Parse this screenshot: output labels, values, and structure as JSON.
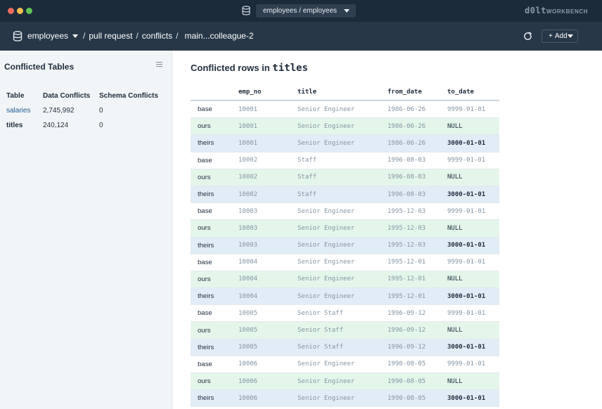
{
  "titlebar": {
    "database_select": "employees / employees",
    "brand_main": "d0lt",
    "brand_sub": "WORKBENCH"
  },
  "header": {
    "database": "employees",
    "crumb_pull_request": "pull request",
    "crumb_conflicts": "conflicts",
    "crumb_branch": "main...colleague-2",
    "add_label": "Add"
  },
  "sidebar": {
    "title": "Conflicted Tables",
    "columns": [
      "Table",
      "Data Conflicts",
      "Schema Conflicts"
    ],
    "rows": [
      {
        "table": "salaries",
        "data_conflicts": "2,745,992",
        "schema_conflicts": "0"
      },
      {
        "table": "titles",
        "data_conflicts": "240,124",
        "schema_conflicts": "0"
      }
    ]
  },
  "main": {
    "title_prefix": "Conflicted rows in",
    "table_name": "titles",
    "columns": [
      "emp_no",
      "title",
      "from_date",
      "to_date"
    ],
    "rows": [
      {
        "kind": "base",
        "emp_no": "10001",
        "title": "Senior Engineer",
        "from_date": "1986-06-26",
        "to_date": "9999-01-01"
      },
      {
        "kind": "ours",
        "emp_no": "10001",
        "title": "Senior Engineer",
        "from_date": "1986-06-26",
        "to_date": "NULL"
      },
      {
        "kind": "theirs",
        "emp_no": "10001",
        "title": "Senior Engineer",
        "from_date": "1986-06-26",
        "to_date": "3000-01-01"
      },
      {
        "kind": "base",
        "emp_no": "10002",
        "title": "Staff",
        "from_date": "1996-08-03",
        "to_date": "9999-01-01"
      },
      {
        "kind": "ours",
        "emp_no": "10002",
        "title": "Staff",
        "from_date": "1996-08-03",
        "to_date": "NULL"
      },
      {
        "kind": "theirs",
        "emp_no": "10002",
        "title": "Staff",
        "from_date": "1996-08-03",
        "to_date": "3000-01-01"
      },
      {
        "kind": "base",
        "emp_no": "10003",
        "title": "Senior Engineer",
        "from_date": "1995-12-03",
        "to_date": "9999-01-01"
      },
      {
        "kind": "ours",
        "emp_no": "10003",
        "title": "Senior Engineer",
        "from_date": "1995-12-03",
        "to_date": "NULL"
      },
      {
        "kind": "theirs",
        "emp_no": "10003",
        "title": "Senior Engineer",
        "from_date": "1995-12-03",
        "to_date": "3000-01-01"
      },
      {
        "kind": "base",
        "emp_no": "10004",
        "title": "Senior Engineer",
        "from_date": "1995-12-01",
        "to_date": "9999-01-01"
      },
      {
        "kind": "ours",
        "emp_no": "10004",
        "title": "Senior Engineer",
        "from_date": "1995-12-01",
        "to_date": "NULL"
      },
      {
        "kind": "theirs",
        "emp_no": "10004",
        "title": "Senior Engineer",
        "from_date": "1995-12-01",
        "to_date": "3000-01-01"
      },
      {
        "kind": "base",
        "emp_no": "10005",
        "title": "Senior Staff",
        "from_date": "1996-09-12",
        "to_date": "9999-01-01"
      },
      {
        "kind": "ours",
        "emp_no": "10005",
        "title": "Senior Staff",
        "from_date": "1996-09-12",
        "to_date": "NULL"
      },
      {
        "kind": "theirs",
        "emp_no": "10005",
        "title": "Senior Staff",
        "from_date": "1996-09-12",
        "to_date": "3000-01-01"
      },
      {
        "kind": "base",
        "emp_no": "10006",
        "title": "Senior Engineer",
        "from_date": "1990-08-05",
        "to_date": "9999-01-01"
      },
      {
        "kind": "ours",
        "emp_no": "10006",
        "title": "Senior Engineer",
        "from_date": "1990-08-05",
        "to_date": "NULL"
      },
      {
        "kind": "theirs",
        "emp_no": "10006",
        "title": "Senior Engineer",
        "from_date": "1990-08-05",
        "to_date": "3000-01-01"
      }
    ]
  },
  "colors": {
    "titlebar_bg": "#1c2b3a",
    "header_bg": "#273747",
    "ours_bg": "#e4f6ea",
    "theirs_bg": "#e2ecf7",
    "sidebar_bg": "#f2f5f7"
  }
}
